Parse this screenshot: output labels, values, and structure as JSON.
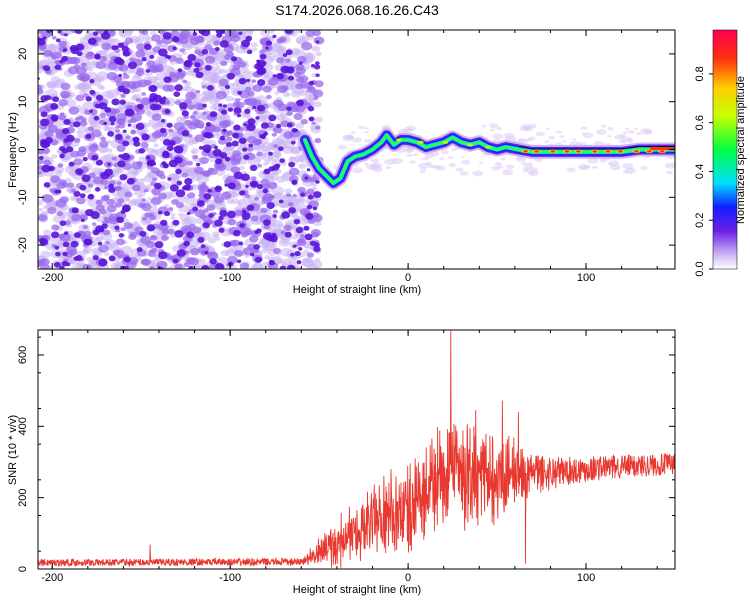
{
  "chart_data": [
    {
      "type": "heatmap",
      "title": "S174.2026.068.16.26.C43",
      "xlabel": "Height of straight line (km)",
      "ylabel": "Frequency (Hz)",
      "xlim": [
        -208,
        150
      ],
      "ylim": [
        -25,
        25
      ],
      "xticks": [
        -200,
        -100,
        0,
        100
      ],
      "yticks": [
        -20,
        -10,
        0,
        10,
        20
      ],
      "noise_region_x": [
        -208,
        -50
      ],
      "noise_region_y": [
        -25,
        25
      ],
      "ridge": [
        {
          "x": -58,
          "y": 2.0
        },
        {
          "x": -54,
          "y": -1.5
        },
        {
          "x": -50,
          "y": -4.0
        },
        {
          "x": -46,
          "y": -5.5
        },
        {
          "x": -42,
          "y": -7.0
        },
        {
          "x": -38,
          "y": -6.0
        },
        {
          "x": -34,
          "y": -2.5
        },
        {
          "x": -30,
          "y": -1.5
        },
        {
          "x": -25,
          "y": -1.0
        },
        {
          "x": -20,
          "y": 0.0
        },
        {
          "x": -15,
          "y": 1.5
        },
        {
          "x": -12,
          "y": 3.0
        },
        {
          "x": -8,
          "y": 1.0
        },
        {
          "x": -4,
          "y": 2.0
        },
        {
          "x": 0,
          "y": 2.0
        },
        {
          "x": 5,
          "y": 1.5
        },
        {
          "x": 10,
          "y": 0.5
        },
        {
          "x": 15,
          "y": 1.0
        },
        {
          "x": 20,
          "y": 1.5
        },
        {
          "x": 25,
          "y": 2.5
        },
        {
          "x": 30,
          "y": 1.5
        },
        {
          "x": 35,
          "y": 1.0
        },
        {
          "x": 40,
          "y": 1.5
        },
        {
          "x": 45,
          "y": 0.5
        },
        {
          "x": 50,
          "y": 0.0
        },
        {
          "x": 55,
          "y": 0.5
        },
        {
          "x": 62,
          "y": 0.0
        },
        {
          "x": 70,
          "y": -0.5
        },
        {
          "x": 80,
          "y": -0.5
        },
        {
          "x": 90,
          "y": -0.5
        },
        {
          "x": 100,
          "y": -0.5
        },
        {
          "x": 110,
          "y": -0.5
        },
        {
          "x": 120,
          "y": -0.5
        },
        {
          "x": 130,
          "y": 0.0
        },
        {
          "x": 140,
          "y": 0.0
        },
        {
          "x": 150,
          "y": 0.0
        }
      ],
      "colorbar": {
        "label": "Normalized spectral amplitude",
        "range": [
          0.0,
          0.98
        ],
        "ticks": [
          "0.0",
          "0.2",
          "0.4",
          "0.6",
          "0.8"
        ],
        "tick_values": [
          0.0,
          0.2,
          0.4,
          0.6,
          0.8
        ]
      }
    },
    {
      "type": "line",
      "xlabel": "Height of straight line (km)",
      "ylabel": "SNR (10 * v/v)",
      "xlim": [
        -208,
        150
      ],
      "ylim": [
        0,
        670
      ],
      "xticks": [
        -200,
        -100,
        0,
        100
      ],
      "yticks": [
        0,
        200,
        400,
        600
      ],
      "color": "#e8382f",
      "series": [
        {
          "name": "SNR",
          "envelope": [
            {
              "x": -208,
              "base": 18,
              "amp": 10
            },
            {
              "x": -60,
              "base": 20,
              "amp": 10
            },
            {
              "x": -40,
              "base": 70,
              "amp": 80
            },
            {
              "x": -20,
              "base": 130,
              "amp": 130
            },
            {
              "x": 0,
              "base": 170,
              "amp": 170
            },
            {
              "x": 20,
              "base": 250,
              "amp": 190
            },
            {
              "x": 40,
              "base": 270,
              "amp": 180
            },
            {
              "x": 60,
              "base": 260,
              "amp": 140
            },
            {
              "x": 70,
              "base": 265,
              "amp": 60
            },
            {
              "x": 90,
              "base": 275,
              "amp": 40
            },
            {
              "x": 110,
              "base": 285,
              "amp": 35
            },
            {
              "x": 150,
              "base": 295,
              "amp": 30
            }
          ],
          "peaks": [
            {
              "x": -145,
              "y": 68
            },
            {
              "x": 24,
              "y": 668
            },
            {
              "x": 38,
              "y": 445
            },
            {
              "x": 53,
              "y": 472
            },
            {
              "x": 62,
              "y": 440
            },
            {
              "x": 66,
              "y": 15
            }
          ]
        }
      ]
    }
  ]
}
